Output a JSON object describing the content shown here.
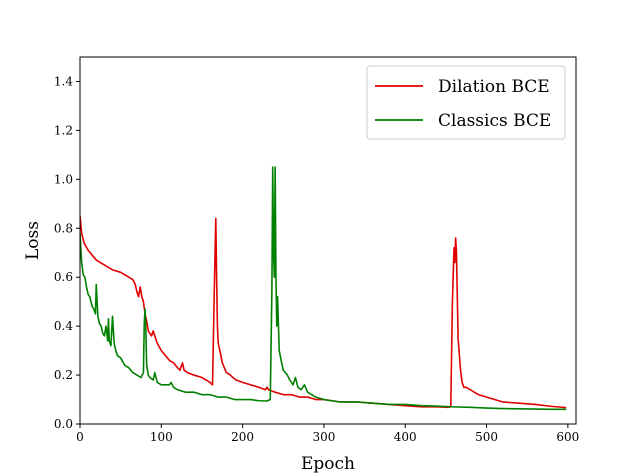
{
  "chart_data": {
    "type": "line",
    "title": "",
    "xlabel": "Epoch",
    "ylabel": "Loss",
    "xlim": [
      0,
      610
    ],
    "ylim": [
      0.0,
      1.5
    ],
    "xticks": [
      "0",
      "100",
      "200",
      "300",
      "400",
      "500",
      "600"
    ],
    "yticks": [
      "0.0",
      "0.2",
      "0.4",
      "0.6",
      "0.8",
      "1.0",
      "1.2",
      "1.4"
    ],
    "grid": false,
    "legend_position": "top-right",
    "series": [
      {
        "name": "Dilation BCE",
        "color": "#e00000",
        "points": [
          [
            0,
            0.85
          ],
          [
            2,
            0.78
          ],
          [
            5,
            0.74
          ],
          [
            10,
            0.71
          ],
          [
            15,
            0.69
          ],
          [
            20,
            0.67
          ],
          [
            25,
            0.66
          ],
          [
            30,
            0.65
          ],
          [
            40,
            0.63
          ],
          [
            50,
            0.62
          ],
          [
            60,
            0.6
          ],
          [
            65,
            0.59
          ],
          [
            68,
            0.57
          ],
          [
            70,
            0.54
          ],
          [
            72,
            0.52
          ],
          [
            74,
            0.56
          ],
          [
            76,
            0.52
          ],
          [
            78,
            0.5
          ],
          [
            80,
            0.45
          ],
          [
            82,
            0.42
          ],
          [
            84,
            0.38
          ],
          [
            86,
            0.37
          ],
          [
            88,
            0.36
          ],
          [
            90,
            0.38
          ],
          [
            92,
            0.36
          ],
          [
            95,
            0.33
          ],
          [
            100,
            0.3
          ],
          [
            105,
            0.28
          ],
          [
            110,
            0.26
          ],
          [
            115,
            0.25
          ],
          [
            120,
            0.23
          ],
          [
            123,
            0.22
          ],
          [
            126,
            0.25
          ],
          [
            128,
            0.22
          ],
          [
            132,
            0.21
          ],
          [
            140,
            0.2
          ],
          [
            150,
            0.19
          ],
          [
            155,
            0.18
          ],
          [
            160,
            0.17
          ],
          [
            163,
            0.16
          ],
          [
            165,
            0.52
          ],
          [
            167,
            0.84
          ],
          [
            168,
            0.6
          ],
          [
            169,
            0.4
          ],
          [
            170,
            0.33
          ],
          [
            172,
            0.3
          ],
          [
            175,
            0.25
          ],
          [
            180,
            0.21
          ],
          [
            185,
            0.2
          ],
          [
            188,
            0.19
          ],
          [
            192,
            0.18
          ],
          [
            200,
            0.17
          ],
          [
            210,
            0.16
          ],
          [
            220,
            0.15
          ],
          [
            228,
            0.14
          ],
          [
            230,
            0.15
          ],
          [
            232,
            0.14
          ],
          [
            240,
            0.13
          ],
          [
            250,
            0.12
          ],
          [
            260,
            0.12
          ],
          [
            270,
            0.11
          ],
          [
            280,
            0.11
          ],
          [
            290,
            0.1
          ],
          [
            300,
            0.1
          ],
          [
            320,
            0.09
          ],
          [
            340,
            0.09
          ],
          [
            360,
            0.085
          ],
          [
            380,
            0.08
          ],
          [
            400,
            0.075
          ],
          [
            420,
            0.07
          ],
          [
            440,
            0.07
          ],
          [
            452,
            0.068
          ],
          [
            456,
            0.07
          ],
          [
            458,
            0.5
          ],
          [
            460,
            0.72
          ],
          [
            461,
            0.66
          ],
          [
            462,
            0.76
          ],
          [
            463,
            0.7
          ],
          [
            465,
            0.35
          ],
          [
            468,
            0.22
          ],
          [
            470,
            0.17
          ],
          [
            472,
            0.15
          ],
          [
            475,
            0.15
          ],
          [
            480,
            0.14
          ],
          [
            490,
            0.12
          ],
          [
            500,
            0.11
          ],
          [
            510,
            0.1
          ],
          [
            520,
            0.09
          ],
          [
            540,
            0.085
          ],
          [
            560,
            0.08
          ],
          [
            580,
            0.072
          ],
          [
            598,
            0.067
          ]
        ]
      },
      {
        "name": "Classics BCE",
        "color": "#008000",
        "points": [
          [
            0,
            0.78
          ],
          [
            2,
            0.66
          ],
          [
            4,
            0.61
          ],
          [
            6,
            0.6
          ],
          [
            8,
            0.56
          ],
          [
            10,
            0.53
          ],
          [
            12,
            0.52
          ],
          [
            15,
            0.48
          ],
          [
            17,
            0.47
          ],
          [
            19,
            0.45
          ],
          [
            20,
            0.57
          ],
          [
            22,
            0.44
          ],
          [
            24,
            0.41
          ],
          [
            26,
            0.4
          ],
          [
            28,
            0.37
          ],
          [
            30,
            0.36
          ],
          [
            32,
            0.4
          ],
          [
            34,
            0.34
          ],
          [
            35,
            0.43
          ],
          [
            36,
            0.34
          ],
          [
            38,
            0.32
          ],
          [
            40,
            0.44
          ],
          [
            42,
            0.33
          ],
          [
            44,
            0.3
          ],
          [
            46,
            0.28
          ],
          [
            50,
            0.27
          ],
          [
            55,
            0.24
          ],
          [
            60,
            0.23
          ],
          [
            65,
            0.21
          ],
          [
            70,
            0.2
          ],
          [
            75,
            0.19
          ],
          [
            78,
            0.21
          ],
          [
            79,
            0.41
          ],
          [
            80,
            0.47
          ],
          [
            81,
            0.38
          ],
          [
            82,
            0.24
          ],
          [
            84,
            0.2
          ],
          [
            86,
            0.19
          ],
          [
            90,
            0.18
          ],
          [
            92,
            0.21
          ],
          [
            95,
            0.17
          ],
          [
            100,
            0.16
          ],
          [
            105,
            0.16
          ],
          [
            110,
            0.16
          ],
          [
            112,
            0.17
          ],
          [
            115,
            0.15
          ],
          [
            120,
            0.14
          ],
          [
            130,
            0.13
          ],
          [
            140,
            0.13
          ],
          [
            150,
            0.12
          ],
          [
            160,
            0.12
          ],
          [
            170,
            0.11
          ],
          [
            180,
            0.11
          ],
          [
            190,
            0.1
          ],
          [
            200,
            0.1
          ],
          [
            210,
            0.1
          ],
          [
            220,
            0.095
          ],
          [
            230,
            0.094
          ],
          [
            234,
            0.1
          ],
          [
            236,
            0.55
          ],
          [
            237,
            1.05
          ],
          [
            238,
            0.7
          ],
          [
            239,
            0.6
          ],
          [
            240,
            1.05
          ],
          [
            241,
            0.6
          ],
          [
            242,
            0.4
          ],
          [
            243,
            0.52
          ],
          [
            245,
            0.3
          ],
          [
            248,
            0.25
          ],
          [
            250,
            0.22
          ],
          [
            255,
            0.2
          ],
          [
            258,
            0.18
          ],
          [
            262,
            0.16
          ],
          [
            265,
            0.19
          ],
          [
            268,
            0.15
          ],
          [
            272,
            0.14
          ],
          [
            276,
            0.16
          ],
          [
            280,
            0.13
          ],
          [
            285,
            0.12
          ],
          [
            290,
            0.11
          ],
          [
            300,
            0.1
          ],
          [
            320,
            0.09
          ],
          [
            340,
            0.09
          ],
          [
            360,
            0.085
          ],
          [
            380,
            0.08
          ],
          [
            400,
            0.08
          ],
          [
            420,
            0.075
          ],
          [
            440,
            0.073
          ],
          [
            460,
            0.07
          ],
          [
            480,
            0.068
          ],
          [
            500,
            0.065
          ],
          [
            520,
            0.063
          ],
          [
            540,
            0.062
          ],
          [
            560,
            0.061
          ],
          [
            580,
            0.06
          ],
          [
            598,
            0.06
          ]
        ]
      }
    ]
  }
}
